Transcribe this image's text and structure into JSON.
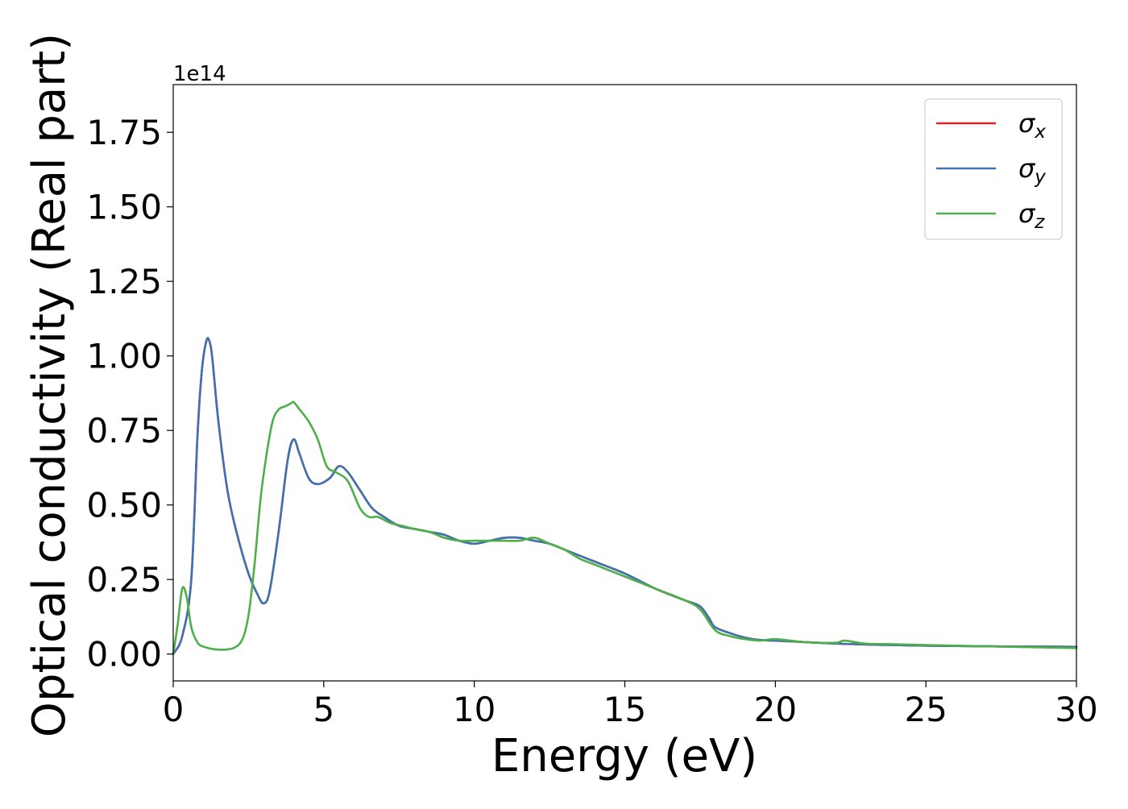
{
  "chart_data": {
    "type": "line",
    "title": "",
    "xlabel": "Energy (eV)",
    "ylabel": "Optical conductivity (Real part)",
    "y_offset_label": "1e14",
    "y_scale": 100000000000000.0,
    "xlim": [
      0,
      30
    ],
    "ylim": [
      -0.09,
      1.91
    ],
    "x_ticks": [
      0,
      5,
      10,
      15,
      20,
      25,
      30
    ],
    "x_tick_labels": [
      "0",
      "5",
      "10",
      "15",
      "20",
      "25",
      "30"
    ],
    "y_ticks": [
      0.0,
      0.25,
      0.5,
      0.75,
      1.0,
      1.25,
      1.5,
      1.75
    ],
    "y_tick_labels": [
      "0.00",
      "0.25",
      "0.50",
      "0.75",
      "1.00",
      "1.25",
      "1.50",
      "1.75"
    ],
    "grid": false,
    "legend": {
      "position": "top-right",
      "entries": [
        {
          "symbol": "σ",
          "subscript": "x",
          "color": "#d62728"
        },
        {
          "symbol": "σ",
          "subscript": "y",
          "color": "#3f72af"
        },
        {
          "symbol": "σ",
          "subscript": "z",
          "color": "#4daf4a"
        }
      ]
    },
    "series": [
      {
        "name": "σx",
        "color": "#d62728",
        "x": [
          0,
          0.3,
          0.6,
          0.8,
          0.95,
          1.1,
          1.2,
          1.3,
          1.5,
          1.8,
          2.1,
          2.5,
          2.8,
          3.0,
          3.2,
          3.5,
          3.8,
          4.0,
          4.2,
          4.5,
          4.8,
          5.2,
          5.5,
          5.8,
          6.2,
          6.6,
          7.0,
          7.5,
          8.0,
          8.5,
          9.0,
          9.5,
          10.0,
          10.5,
          11.0,
          11.5,
          12.0,
          12.5,
          13.0,
          13.5,
          14.0,
          15.0,
          16.0,
          17.0,
          17.5,
          17.8,
          18.0,
          18.5,
          19.0,
          19.5,
          20.0,
          21.0,
          22.0,
          23.0,
          24.0,
          25.0,
          26.0,
          27.0,
          28.0,
          29.0,
          30.0
        ],
        "values": [
          0.0,
          0.06,
          0.25,
          0.72,
          0.95,
          1.05,
          1.05,
          0.99,
          0.78,
          0.55,
          0.41,
          0.27,
          0.2,
          0.17,
          0.21,
          0.41,
          0.65,
          0.72,
          0.67,
          0.59,
          0.57,
          0.59,
          0.63,
          0.61,
          0.55,
          0.49,
          0.46,
          0.43,
          0.42,
          0.41,
          0.4,
          0.38,
          0.37,
          0.38,
          0.39,
          0.39,
          0.38,
          0.37,
          0.35,
          0.33,
          0.31,
          0.27,
          0.22,
          0.18,
          0.16,
          0.12,
          0.09,
          0.07,
          0.055,
          0.047,
          0.045,
          0.04,
          0.035,
          0.032,
          0.03,
          0.028,
          0.027,
          0.026,
          0.025,
          0.025,
          0.024
        ]
      },
      {
        "name": "σy",
        "color": "#3f72af",
        "x": [
          0,
          0.3,
          0.6,
          0.8,
          0.95,
          1.1,
          1.2,
          1.3,
          1.5,
          1.8,
          2.1,
          2.5,
          2.8,
          3.0,
          3.2,
          3.5,
          3.8,
          4.0,
          4.2,
          4.5,
          4.8,
          5.2,
          5.5,
          5.8,
          6.2,
          6.6,
          7.0,
          7.5,
          8.0,
          8.5,
          9.0,
          9.5,
          10.0,
          10.5,
          11.0,
          11.5,
          12.0,
          12.5,
          13.0,
          13.5,
          14.0,
          15.0,
          16.0,
          17.0,
          17.5,
          17.8,
          18.0,
          18.5,
          19.0,
          19.5,
          20.0,
          21.0,
          22.0,
          23.0,
          24.0,
          25.0,
          26.0,
          27.0,
          28.0,
          29.0,
          30.0
        ],
        "values": [
          0.0,
          0.06,
          0.25,
          0.72,
          0.95,
          1.05,
          1.05,
          0.99,
          0.78,
          0.55,
          0.41,
          0.27,
          0.2,
          0.17,
          0.21,
          0.41,
          0.65,
          0.72,
          0.67,
          0.59,
          0.57,
          0.59,
          0.63,
          0.61,
          0.55,
          0.49,
          0.46,
          0.43,
          0.42,
          0.41,
          0.4,
          0.38,
          0.37,
          0.38,
          0.39,
          0.39,
          0.38,
          0.37,
          0.35,
          0.33,
          0.31,
          0.27,
          0.22,
          0.18,
          0.16,
          0.12,
          0.09,
          0.07,
          0.055,
          0.047,
          0.045,
          0.04,
          0.035,
          0.032,
          0.03,
          0.028,
          0.027,
          0.026,
          0.025,
          0.025,
          0.024
        ]
      },
      {
        "name": "σz",
        "color": "#4daf4a",
        "x": [
          0,
          0.15,
          0.3,
          0.45,
          0.6,
          0.8,
          1.0,
          1.5,
          2.0,
          2.3,
          2.5,
          2.7,
          2.9,
          3.1,
          3.3,
          3.5,
          3.7,
          3.9,
          4.0,
          4.2,
          4.5,
          4.8,
          5.1,
          5.4,
          5.8,
          6.2,
          6.5,
          6.8,
          7.2,
          7.6,
          8.0,
          8.5,
          9.0,
          9.5,
          10.0,
          10.5,
          11.0,
          11.5,
          12.0,
          12.5,
          13.0,
          13.5,
          14.0,
          15.0,
          16.0,
          17.0,
          17.5,
          18.0,
          18.5,
          19.0,
          19.5,
          20.0,
          21.0,
          22.0,
          22.3,
          23.0,
          24.0,
          25.0,
          26.0,
          27.0,
          28.0,
          29.0,
          30.0
        ],
        "values": [
          0.0,
          0.1,
          0.22,
          0.19,
          0.09,
          0.04,
          0.025,
          0.015,
          0.02,
          0.05,
          0.13,
          0.3,
          0.52,
          0.67,
          0.78,
          0.82,
          0.83,
          0.84,
          0.845,
          0.82,
          0.78,
          0.72,
          0.63,
          0.61,
          0.58,
          0.49,
          0.46,
          0.46,
          0.44,
          0.43,
          0.42,
          0.41,
          0.39,
          0.38,
          0.38,
          0.38,
          0.38,
          0.38,
          0.39,
          0.37,
          0.35,
          0.32,
          0.3,
          0.26,
          0.22,
          0.18,
          0.15,
          0.08,
          0.06,
          0.05,
          0.045,
          0.05,
          0.04,
          0.038,
          0.045,
          0.035,
          0.033,
          0.03,
          0.028,
          0.026,
          0.024,
          0.022,
          0.02
        ]
      }
    ]
  }
}
